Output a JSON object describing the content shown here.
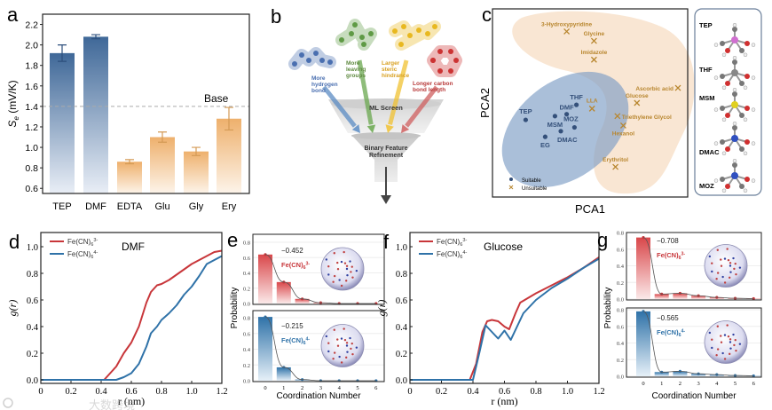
{
  "watermark": "大数跨境",
  "colors": {
    "blue": "#3f6898",
    "orange": "#eeb06c",
    "red": "#c8363a",
    "teal": "#2f72a8",
    "suitable": "#34507a",
    "unsuitable": "#b8862e"
  },
  "chart_data": [
    {
      "panel": "a",
      "type": "bar",
      "categories": [
        "TEP",
        "DMF",
        "EDTA",
        "Glu",
        "Gly",
        "Ery"
      ],
      "values": [
        1.92,
        2.08,
        0.86,
        1.1,
        0.96,
        1.28
      ],
      "errors": [
        0.08,
        0.02,
        0.02,
        0.05,
        0.04,
        0.11
      ],
      "groups": [
        "suitable",
        "suitable",
        "unsuitable",
        "unsuitable",
        "unsuitable",
        "unsuitable"
      ],
      "ylabel_main": "S",
      "ylabel_sub": "e",
      "ylabel_unit": " (mV/K)",
      "ylim": [
        0.55,
        2.3
      ],
      "yticks": [
        "0.6",
        "0.8",
        "1.0",
        "1.2",
        "1.4",
        "1.6",
        "1.8",
        "2.0",
        "2.2"
      ],
      "reference_line": {
        "value": 1.4,
        "label": "Base"
      }
    },
    {
      "panel": "b",
      "type": "diagram",
      "arrow_labels": [
        [
          "More",
          "hydrogen",
          "bond"
        ],
        [
          "More",
          "leaving",
          "groups"
        ],
        [
          "Larger",
          "steric",
          "hindrance"
        ],
        [
          "Longer carbon",
          "bond length"
        ]
      ],
      "stage1": "ML Screen",
      "stage2": [
        "Binary Feature",
        "Refinement"
      ]
    },
    {
      "panel": "c",
      "type": "scatter",
      "xlabel": "PCA1",
      "ylabel": "PCA2",
      "points": [
        {
          "label": "TEP",
          "x": 17,
          "y": 41,
          "class": "suitable"
        },
        {
          "label": "MSM",
          "x": 32,
          "y": 43,
          "class": "suitable"
        },
        {
          "label": "DMF",
          "x": 38,
          "y": 44,
          "class": "suitable"
        },
        {
          "label": "THF",
          "x": 43,
          "y": 49,
          "class": "suitable"
        },
        {
          "label": "MOZ",
          "x": 42,
          "y": 37,
          "class": "suitable"
        },
        {
          "label": "DMAC",
          "x": 35,
          "y": 35,
          "class": "suitable"
        },
        {
          "label": "EG",
          "x": 27,
          "y": 32,
          "class": "suitable"
        },
        {
          "label": "3-Hydroxypyridine",
          "x": 38,
          "y": 88,
          "class": "unsuitable"
        },
        {
          "label": "Glycine",
          "x": 52,
          "y": 83,
          "class": "unsuitable"
        },
        {
          "label": "Imidazole",
          "x": 52,
          "y": 73,
          "class": "unsuitable"
        },
        {
          "label": "Ascorbic acid",
          "x": 95,
          "y": 58,
          "class": "unsuitable"
        },
        {
          "label": "Glucose",
          "x": 74,
          "y": 50,
          "class": "unsuitable"
        },
        {
          "label": "LLA",
          "x": 51,
          "y": 47,
          "class": "unsuitable"
        },
        {
          "label": "Triethylene Glycol",
          "x": 64,
          "y": 43,
          "class": "unsuitable"
        },
        {
          "label": "Hexanol",
          "x": 67,
          "y": 38,
          "class": "unsuitable"
        },
        {
          "label": "Erythritol",
          "x": 63,
          "y": 16,
          "class": "unsuitable"
        }
      ],
      "legend": [
        "Suitable",
        "Unsuitable"
      ],
      "molecules": [
        "TEP",
        "THF",
        "MSM",
        "DMAC",
        "MOZ"
      ]
    },
    {
      "panel": "d",
      "type": "line",
      "title": "DMF",
      "xlabel": "r (nm)",
      "ylabel": "g(r)",
      "xlim": [
        0,
        1.2
      ],
      "ylim": [
        0,
        1.1
      ],
      "xticks": [
        "0",
        "0.2",
        "0.4",
        "0.6",
        "0.8",
        "1.0",
        "1.2"
      ],
      "yticks": [
        "0.0",
        "0.2",
        "0.4",
        "0.6",
        "0.8",
        "1.0"
      ],
      "series": [
        {
          "name": "Fe(CN)6 3-",
          "base": "Fe(CN)",
          "sub": "6",
          "sup": "3-",
          "color": "#c8363a",
          "x": [
            0,
            0.42,
            0.46,
            0.5,
            0.55,
            0.6,
            0.65,
            0.7,
            0.73,
            0.77,
            0.8,
            0.85,
            0.9,
            0.95,
            1.0,
            1.05,
            1.1,
            1.15,
            1.2
          ],
          "y": [
            0,
            0,
            0.05,
            0.1,
            0.2,
            0.28,
            0.4,
            0.58,
            0.66,
            0.71,
            0.72,
            0.75,
            0.79,
            0.83,
            0.87,
            0.9,
            0.93,
            0.96,
            0.97
          ]
        },
        {
          "name": "Fe(CN)6 4-",
          "base": "Fe(CN)",
          "sub": "6",
          "sup": "4-",
          "color": "#2f72a8",
          "x": [
            0,
            0.5,
            0.55,
            0.6,
            0.65,
            0.7,
            0.73,
            0.77,
            0.8,
            0.85,
            0.9,
            0.95,
            1.0,
            1.05,
            1.1,
            1.15,
            1.2
          ],
          "y": [
            0,
            0,
            0.02,
            0.05,
            0.12,
            0.25,
            0.35,
            0.4,
            0.45,
            0.5,
            0.56,
            0.64,
            0.7,
            0.78,
            0.87,
            0.9,
            0.93
          ]
        }
      ]
    },
    {
      "panel": "e",
      "type": "bar",
      "xlabel": "Coordination Number",
      "ylabel": "Probability",
      "categories": [
        "0",
        "1",
        "2",
        "3",
        "4",
        "5",
        "6"
      ],
      "yticks": [
        "0.0",
        "0.2",
        "0.4",
        "0.6",
        "0.8"
      ],
      "subplots": [
        {
          "value_label": "−0.452",
          "base": "Fe(CN)",
          "sub": "6",
          "sup": "3-",
          "color": "#c8363a",
          "values": [
            0.64,
            0.28,
            0.06,
            0.01,
            0.0,
            0.0,
            0.0
          ]
        },
        {
          "value_label": "−0.215",
          "base": "Fe(CN)",
          "sub": "6",
          "sup": "4-",
          "color": "#2f72a8",
          "values": [
            0.81,
            0.17,
            0.015,
            0.0,
            0.0,
            0.0,
            0.0
          ]
        }
      ]
    },
    {
      "panel": "f",
      "type": "line",
      "title": "Glucose",
      "xlabel": "r (nm)",
      "ylabel": "g(r)",
      "xlim": [
        0,
        1.2
      ],
      "ylim": [
        0,
        1.1
      ],
      "xticks": [
        "0",
        "0.2",
        "0.4",
        "0.6",
        "0.8",
        "1.0",
        "1.2"
      ],
      "yticks": [
        "0.0",
        "0.2",
        "0.4",
        "0.6",
        "0.8",
        "1.0"
      ],
      "series": [
        {
          "name": "Fe(CN)6 3-",
          "base": "Fe(CN)",
          "sub": "6",
          "sup": "3-",
          "color": "#c8363a",
          "x": [
            0,
            0.38,
            0.42,
            0.46,
            0.49,
            0.52,
            0.56,
            0.6,
            0.63,
            0.67,
            0.7,
            0.8,
            0.9,
            1.0,
            1.1,
            1.2
          ],
          "y": [
            0,
            0,
            0.12,
            0.36,
            0.44,
            0.45,
            0.44,
            0.4,
            0.38,
            0.5,
            0.58,
            0.65,
            0.71,
            0.77,
            0.84,
            0.92
          ]
        },
        {
          "name": "Fe(CN)6 4-",
          "base": "Fe(CN)",
          "sub": "6",
          "sup": "4-",
          "color": "#2f72a8",
          "x": [
            0,
            0.4,
            0.44,
            0.48,
            0.52,
            0.56,
            0.6,
            0.64,
            0.68,
            0.72,
            0.8,
            0.9,
            1.0,
            1.1,
            1.2
          ],
          "y": [
            0,
            0,
            0.2,
            0.41,
            0.36,
            0.31,
            0.37,
            0.3,
            0.4,
            0.5,
            0.6,
            0.69,
            0.76,
            0.84,
            0.91
          ]
        }
      ]
    },
    {
      "panel": "g",
      "type": "bar",
      "xlabel": "Coordination Number",
      "ylabel": "Probability",
      "categories": [
        "0",
        "1",
        "2",
        "3",
        "4",
        "5",
        "6"
      ],
      "yticks": [
        "0.0",
        "0.2",
        "0.4",
        "0.6",
        "0.8"
      ],
      "subplots": [
        {
          "value_label": "−0.708",
          "base": "Fe(CN)",
          "sub": "6",
          "sup": "3-",
          "color": "#c8363a",
          "values": [
            0.74,
            0.06,
            0.07,
            0.04,
            0.02,
            0.01,
            0.005
          ]
        },
        {
          "value_label": "−0.565",
          "base": "Fe(CN)",
          "sub": "6",
          "sup": "4-",
          "color": "#2f72a8",
          "values": [
            0.78,
            0.05,
            0.06,
            0.03,
            0.02,
            0.01,
            0.005
          ]
        }
      ]
    }
  ]
}
